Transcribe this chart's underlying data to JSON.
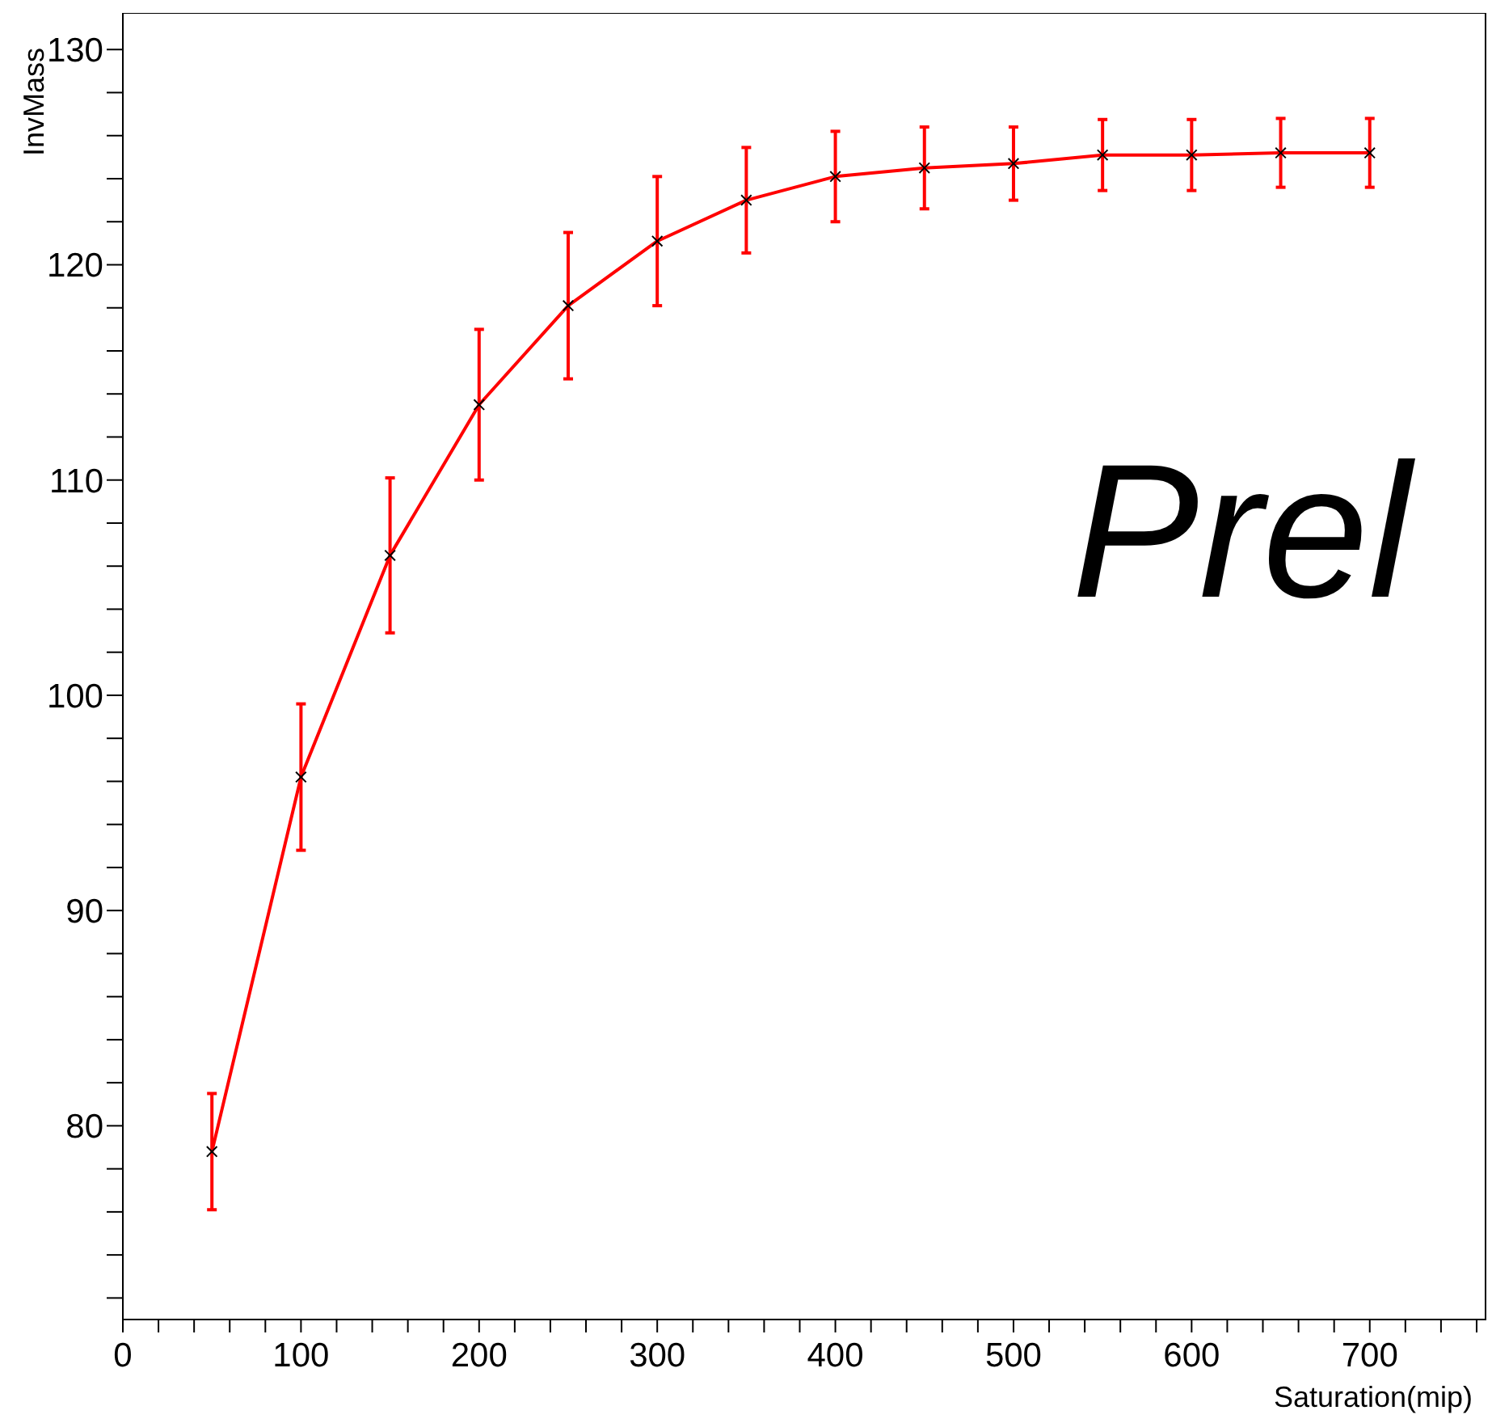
{
  "chart_data": {
    "type": "line",
    "xlabel": "Saturation(mip)",
    "ylabel": "InvMass",
    "annotations": [
      "Prel"
    ],
    "x": [
      50,
      100,
      150,
      200,
      250,
      300,
      350,
      400,
      450,
      500,
      550,
      600,
      650,
      700
    ],
    "series": [
      {
        "color": "#ff0000",
        "values": [
          78.8,
          96.2,
          106.5,
          113.5,
          118.1,
          121.1,
          123.0,
          124.1,
          124.5,
          124.7,
          125.1,
          125.1,
          125.2,
          125.2
        ],
        "errors": [
          2.7,
          3.4,
          3.6,
          3.5,
          3.4,
          3.0,
          2.45,
          2.1,
          1.9,
          1.7,
          1.65,
          1.65,
          1.6,
          1.6
        ]
      }
    ],
    "marker": "cross",
    "line_style": "solid",
    "grid": false,
    "legend": false,
    "xlim": [
      0,
      765
    ],
    "ylim": [
      71,
      131.7
    ],
    "xticks": [
      0,
      {
        "value": 20,
        "label": null
      },
      {
        "value": 40,
        "label": null
      },
      {
        "value": 60,
        "label": null
      },
      {
        "value": 80,
        "label": null
      },
      100,
      {
        "value": 120,
        "label": null
      },
      {
        "value": 140,
        "label": null
      },
      {
        "value": 160,
        "label": null
      },
      {
        "value": 180,
        "label": null
      },
      200,
      {
        "value": 220,
        "label": null
      },
      {
        "value": 240,
        "label": null
      },
      {
        "value": 260,
        "label": null
      },
      {
        "value": 280,
        "label": null
      },
      300,
      {
        "value": 320,
        "label": null
      },
      {
        "value": 340,
        "label": null
      },
      {
        "value": 360,
        "label": null
      },
      {
        "value": 380,
        "label": null
      },
      400,
      {
        "value": 420,
        "label": null
      },
      {
        "value": 440,
        "label": null
      },
      {
        "value": 460,
        "label": null
      },
      {
        "value": 480,
        "label": null
      },
      500,
      {
        "value": 520,
        "label": null
      },
      {
        "value": 540,
        "label": null
      },
      {
        "value": 560,
        "label": null
      },
      {
        "value": 580,
        "label": null
      },
      600,
      {
        "value": 620,
        "label": null
      },
      {
        "value": 640,
        "label": null
      },
      {
        "value": 660,
        "label": null
      },
      {
        "value": 680,
        "label": null
      },
      700,
      {
        "value": 720,
        "label": null
      },
      {
        "value": 740,
        "label": null
      },
      {
        "value": 760,
        "label": null
      }
    ],
    "yticks": [
      {
        "value": 72,
        "label": null
      },
      {
        "value": 74,
        "label": null
      },
      {
        "value": 76,
        "label": null
      },
      {
        "value": 78,
        "label": null
      },
      80,
      {
        "value": 82,
        "label": null
      },
      {
        "value": 84,
        "label": null
      },
      {
        "value": 86,
        "label": null
      },
      {
        "value": 88,
        "label": null
      },
      90,
      {
        "value": 92,
        "label": null
      },
      {
        "value": 94,
        "label": null
      },
      {
        "value": 96,
        "label": null
      },
      {
        "value": 98,
        "label": null
      },
      100,
      {
        "value": 102,
        "label": null
      },
      {
        "value": 104,
        "label": null
      },
      {
        "value": 106,
        "label": null
      },
      {
        "value": 108,
        "label": null
      },
      110,
      {
        "value": 112,
        "label": null
      },
      {
        "value": 114,
        "label": null
      },
      {
        "value": 116,
        "label": null
      },
      {
        "value": 118,
        "label": null
      },
      120,
      {
        "value": 122,
        "label": null
      },
      {
        "value": 124,
        "label": null
      },
      {
        "value": 126,
        "label": null
      },
      {
        "value": 128,
        "label": null
      },
      130
    ]
  }
}
